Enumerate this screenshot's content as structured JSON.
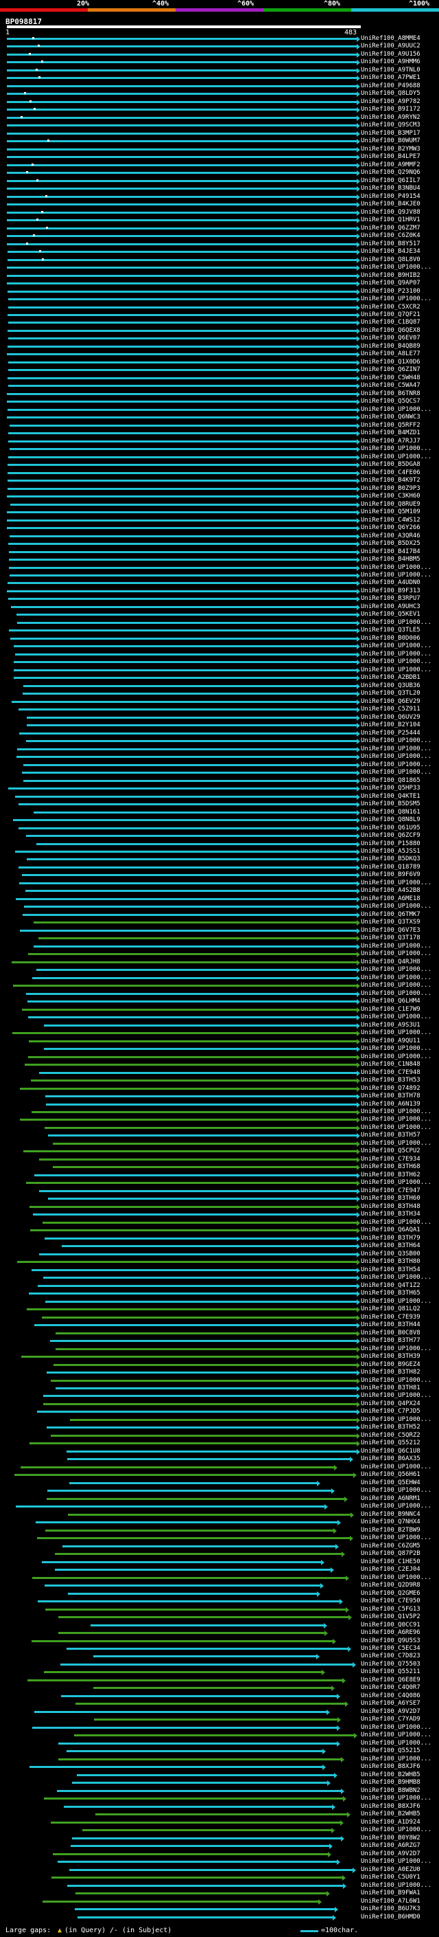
{
  "legend": {
    "ticks": [
      "20%",
      "^40%",
      "^60%",
      "^80%",
      "^100%"
    ],
    "colors": [
      "#e01010",
      "#e07810",
      "#a020c0",
      "#10a010",
      "#20c0d0"
    ]
  },
  "query": {
    "name": "BP098817",
    "start": "1",
    "end": "483"
  },
  "hit_colors": {
    "high": "#20c4d8",
    "mid": "#40a020"
  },
  "hits": [
    "UniRef100_A8MME4",
    "UniRef100_A9UUC2",
    "UniRef100_A9U156",
    "UniRef100_A9HMM6",
    "UniRef100_A9TNL0",
    "UniRef100_A7PWE1",
    "UniRef100_P49688",
    "UniRef100_Q8LDY5",
    "UniRef100_A9P782",
    "UniRef100_B9I172",
    "UniRef100_A9RYN2",
    "UniRef100_Q9SCM3",
    "UniRef100_B3MP17",
    "UniRef100_B0WUM7",
    "UniRef100_B2YMW3",
    "UniRef100_B4LPE7",
    "UniRef100_A9MMF2",
    "UniRef100_Q29NQ6",
    "UniRef100_Q6IIL7",
    "UniRef100_B3NBU4",
    "UniRef100_P49154",
    "UniRef100_B4KJE0",
    "UniRef100_Q9JV88",
    "UniRef100_Q1HRV1",
    "UniRef100_Q6ZZM7",
    "UniRef100_C6Z0K4",
    "UniRef100_B8Y517",
    "UniRef100_B4JE34",
    "UniRef100_Q8L8V0",
    "UniRef100_UP1000...",
    "UniRef100_B9HIB2",
    "UniRef100_Q9AP07",
    "UniRef100_P23100",
    "UniRef100_UP1000...",
    "UniRef100_C5XCR2",
    "UniRef100_Q7QF21",
    "UniRef100_C1BQ87",
    "UniRef100_Q6QEX8",
    "UniRef100_Q6EV07",
    "UniRef100_B4QB89",
    "UniRef100_A8LE77",
    "UniRef100_Q1X0D6",
    "UniRef100_Q6ZIN7",
    "UniRef100_C5WH48",
    "UniRef100_C5WA47",
    "UniRef100_B6TNR8",
    "UniRef100_Q5QCS7",
    "UniRef100_UP1000...",
    "UniRef100_Q6NWC3",
    "UniRef100_Q5RFF2",
    "UniRef100_B4MZD1",
    "UniRef100_A7RJJ7",
    "UniRef100_UP1000...",
    "UniRef100_UP1000...",
    "UniRef100_B5DGA8",
    "UniRef100_C4FE06",
    "UniRef100_B4K9T2",
    "UniRef100_B0Z9P3",
    "UniRef100_C3KH60",
    "UniRef100_Q8RUE9",
    "UniRef100_Q5M109",
    "UniRef100_C4WS12",
    "UniRef100_Q6Y266",
    "UniRef100_A3QR46",
    "UniRef100_B5DX25",
    "UniRef100_B4I7B4",
    "UniRef100_B4HBM5",
    "UniRef100_UP1000...",
    "UniRef100_UP1000...",
    "UniRef100_A4UDN0",
    "UniRef100_B9F313",
    "UniRef100_B3RPU7",
    "UniRef100_A9UHC3",
    "UniRef100_Q5KEV1",
    "UniRef100_UP1000...",
    "UniRef100_Q3TLE5",
    "UniRef100_B0D006",
    "UniRef100_UP1000...",
    "UniRef100_UP1000...",
    "UniRef100_UP1000...",
    "UniRef100_UP1000...",
    "UniRef100_A2BDB1",
    "UniRef100_Q3UB36",
    "UniRef100_Q3TL20",
    "UniRef100_Q6EV29",
    "UniRef100_C5Z911",
    "UniRef100_Q6UV29",
    "UniRef100_B2Y104",
    "UniRef100_P25444",
    "UniRef100_UP1000...",
    "UniRef100_UP1000...",
    "UniRef100_UP1000...",
    "UniRef100_UP1000...",
    "UniRef100_UP1000...",
    "UniRef100_Q81865",
    "UniRef100_Q5HP33",
    "UniRef100_Q4KTE1",
    "UniRef100_B5DSM5",
    "UniRef100_Q8N161",
    "UniRef100_Q8N8L9",
    "UniRef100_Q61U95",
    "UniRef100_Q6ZCF9",
    "UniRef100_P15880",
    "UniRef100_A5JSS1",
    "UniRef100_B5DKQ3",
    "UniRef100_Q18789",
    "UniRef100_B9F6V9",
    "UniRef100_UP1000...",
    "UniRef100_A4S2B8",
    "UniRef100_A6ME18",
    "UniRef100_UP1000...",
    "UniRef100_Q6TMK7",
    "UniRef100_Q3TXS9",
    "UniRef100_Q6V7E3",
    "UniRef100_Q3T178",
    "UniRef100_UP1000...",
    "UniRef100_UP1000...",
    "UniRef100_Q4RJH8",
    "UniRef100_UP1000...",
    "UniRef100_UP1000...",
    "UniRef100_UP1000...",
    "UniRef100_UP1000...",
    "UniRef100_Q6LHM4",
    "UniRef100_C1E7W9",
    "UniRef100_UP1000...",
    "UniRef100_A9S3U1",
    "UniRef100_UP1000...",
    "UniRef100_A9QU11",
    "UniRef100_UP1000...",
    "UniRef100_UP1000...",
    "UniRef100_C1N848",
    "UniRef100_C7E948",
    "UniRef100_B3TH53",
    "UniRef100_Q74892",
    "UniRef100_B3TH78",
    "UniRef100_A6N139",
    "UniRef100_UP1000...",
    "UniRef100_UP1000...",
    "UniRef100_UP1000...",
    "UniRef100_B3TH57",
    "UniRef100_UP1000...",
    "UniRef100_Q5CPU2",
    "UniRef100_C7E934",
    "UniRef100_B3TH68",
    "UniRef100_B3TH62",
    "UniRef100_UP1000...",
    "UniRef100_C7E947",
    "UniRef100_B3TH60",
    "UniRef100_B3TH48",
    "UniRef100_B3TH34",
    "UniRef100_UP1000...",
    "UniRef100_Q6AQA1",
    "UniRef100_B3TH79",
    "UniRef100_B3TH64",
    "UniRef100_Q3SB00",
    "UniRef100_B3TH80",
    "UniRef100_B3TH54",
    "UniRef100_UP1000...",
    "UniRef100_Q4T1Z2",
    "UniRef100_B3TH65",
    "UniRef100_UP1000...",
    "UniRef100_Q81LQ2",
    "UniRef100_C7E939",
    "UniRef100_B3TH44",
    "UniRef100_B0C8V8",
    "UniRef100_B3TH77",
    "UniRef100_UP1000...",
    "UniRef100_B3TH39",
    "UniRef100_B9GEZ4",
    "UniRef100_B3TH82",
    "UniRef100_UP1000...",
    "UniRef100_B3TH81",
    "UniRef100_UP1000...",
    "UniRef100_Q4PX24",
    "UniRef100_C7PJD5",
    "UniRef100_UP1000...",
    "UniRef100_B3TH52",
    "UniRef100_C5QRZ2",
    "UniRef100_Q55212",
    "UniRef100_Q6C1U8",
    "UniRef100_B6AX35",
    "UniRef100_UP1000...",
    "UniRef100_Q56H61",
    "UniRef100_Q5EHW4",
    "UniRef100_UP1000...",
    "UniRef100_A6NRM1",
    "UniRef100_UP1000...",
    "UniRef100_B9NNC4",
    "UniRef100_Q7NHX4",
    "UniRef100_B2TBW9",
    "UniRef100_UP1000...",
    "UniRef100_C6ZGM5",
    "UniRef100_Q87P2B",
    "UniRef100_C1HE50",
    "UniRef100_C2EJ04",
    "UniRef100_UP1000...",
    "UniRef100_Q2D9R8",
    "UniRef100_Q2GME6",
    "UniRef100_C7E950",
    "UniRef100_C5FG13",
    "UniRef100_Q1V5P2",
    "UniRef100_Q0CC91",
    "UniRef100_A6RE96",
    "UniRef100_Q9U5S3",
    "UniRef100_C5EC34",
    "UniRef100_C7D823",
    "UniRef100_Q75503",
    "UniRef100_Q55211",
    "UniRef100_Q6E8E9",
    "UniRef100_C4Q0R7",
    "UniRef100_C4Q086",
    "UniRef100_A6YSE7",
    "UniRef100_A9V2D7",
    "UniRef100_C7YAD9",
    "UniRef100_UP1000...",
    "UniRef100_UP1000...",
    "UniRef100_UP1000...",
    "UniRef100_Q55215",
    "UniRef100_UP1000...",
    "UniRef100_B8XJF6",
    "UniRef100_B2WHB5",
    "UniRef100_B9HMB8",
    "UniRef100_B8WBN2",
    "UniRef100_UP1000...",
    "UniRef100_B8XJF6",
    "UniRef100_B2WHB5",
    "UniRef100_A1D924",
    "UniRef100_UP1000...",
    "UniRef100_B0Y8W2",
    "UniRef100_A6RZG7",
    "UniRef100_A9V2D7",
    "UniRef100_UP1000...",
    "UniRef100_A0EZU0",
    "UniRef100_C5U0Y1",
    "UniRef100_UP1000...",
    "UniRef100_B9FWA1",
    "UniRef100_A7L6W1",
    "UniRef100_B6U7K3",
    "UniRef100_B6HMD0"
  ],
  "footer": {
    "gaps_label": "Large gaps:",
    "in_query": "(in Query)",
    "in_subject": "/- (in Subject)",
    "scale_label": "=100char."
  }
}
